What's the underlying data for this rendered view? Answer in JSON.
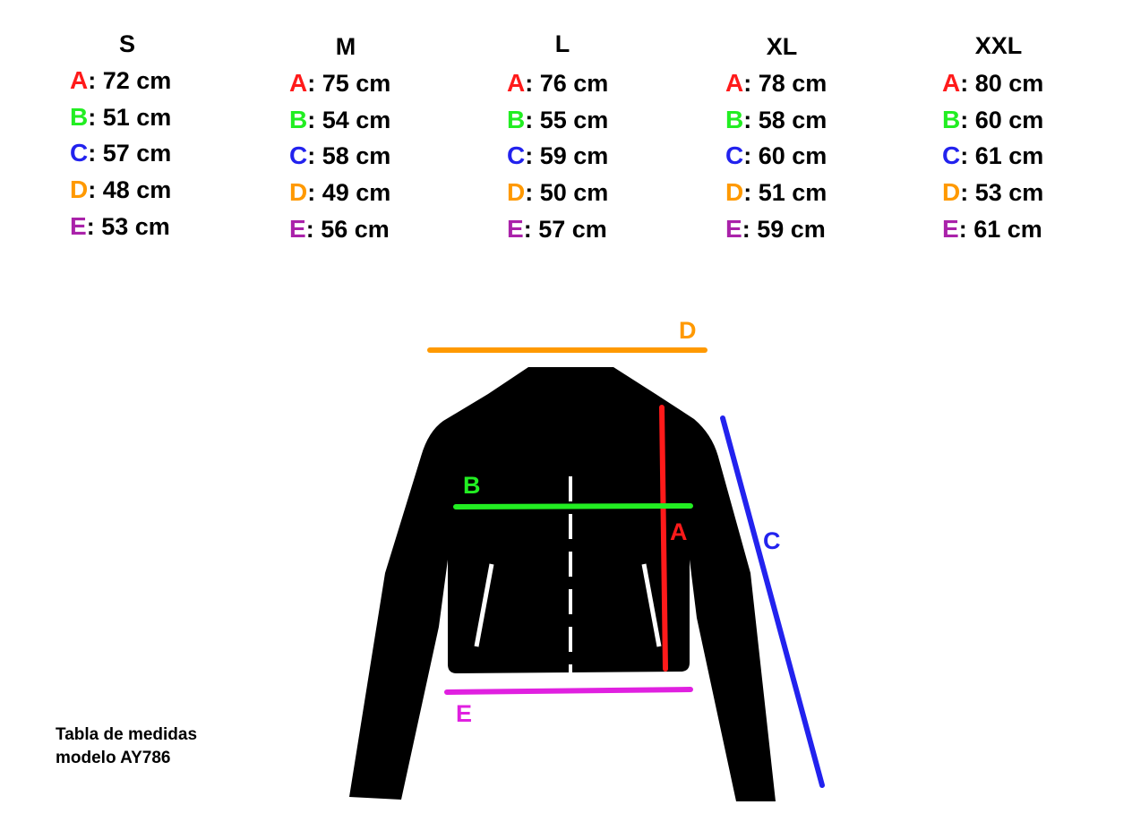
{
  "colors": {
    "A": "#ff1a1a",
    "B": "#22ee22",
    "C": "#2222ee",
    "D": "#ff9900",
    "E": "#aa22aa",
    "E_line": "#e020e0"
  },
  "sizes": [
    {
      "name": "S",
      "rows": [
        {
          "key": "A",
          "value": "72 cm"
        },
        {
          "key": "B",
          "value": "51 cm"
        },
        {
          "key": "C",
          "value": "57 cm"
        },
        {
          "key": "D",
          "value": "48 cm"
        },
        {
          "key": "E",
          "value": "53 cm"
        }
      ]
    },
    {
      "name": "M",
      "rows": [
        {
          "key": "A",
          "value": "75 cm"
        },
        {
          "key": "B",
          "value": "54 cm"
        },
        {
          "key": "C",
          "value": "58 cm"
        },
        {
          "key": "D",
          "value": "49 cm"
        },
        {
          "key": "E",
          "value": "56 cm"
        }
      ]
    },
    {
      "name": "L",
      "rows": [
        {
          "key": "A",
          "value": "76 cm"
        },
        {
          "key": "B",
          "value": "55 cm"
        },
        {
          "key": "C",
          "value": "59 cm"
        },
        {
          "key": "D",
          "value": "50 cm"
        },
        {
          "key": "E",
          "value": "57 cm"
        }
      ]
    },
    {
      "name": "XL",
      "rows": [
        {
          "key": "A",
          "value": "78 cm"
        },
        {
          "key": "B",
          "value": "58 cm"
        },
        {
          "key": "C",
          "value": "60 cm"
        },
        {
          "key": "D",
          "value": "51 cm"
        },
        {
          "key": "E",
          "value": "59 cm"
        }
      ]
    },
    {
      "name": "XXL",
      "rows": [
        {
          "key": "A",
          "value": "80 cm"
        },
        {
          "key": "B",
          "value": "60 cm"
        },
        {
          "key": "C",
          "value": "61 cm"
        },
        {
          "key": "D",
          "value": "53 cm"
        },
        {
          "key": "E",
          "value": "61 cm"
        }
      ]
    }
  ],
  "diagram_labels": {
    "A": "A",
    "B": "B",
    "C": "C",
    "D": "D",
    "E": "E"
  },
  "caption": {
    "line1": "Tabla de medidas",
    "line2": "modelo AY786"
  }
}
